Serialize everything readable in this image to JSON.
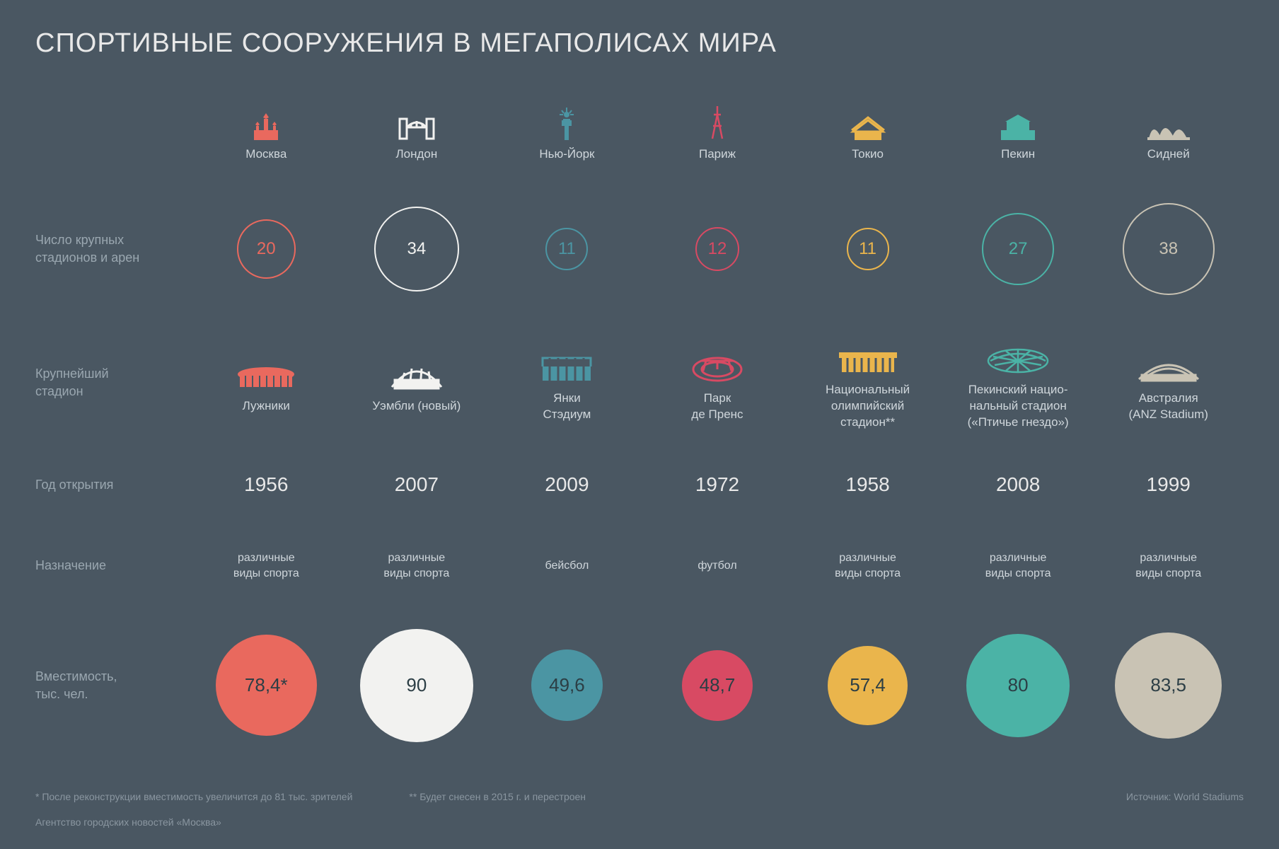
{
  "type": "infographic",
  "title": "СПОРТИВНЫЕ СООРУЖЕНИЯ В МЕГАПОЛИСАХ МИРА",
  "background_color": "#4a5762",
  "title_color": "#e8e8e8",
  "title_fontsize": 38,
  "label_color": "#9aa7b0",
  "text_color": "#cfd6db",
  "row_labels": {
    "count": "Число крупных\nстадионов и арен",
    "stadium": "Крупнейший\nстадион",
    "year": "Год открытия",
    "purpose": "Назначение",
    "capacity": "Вместимость,\nтыс. чел."
  },
  "count_ring": {
    "min_val": 11,
    "max_val": 38,
    "min_d": 60,
    "max_d": 130
  },
  "capacity_circle": {
    "min_val": 48.7,
    "max_val": 90,
    "min_d": 100,
    "max_d": 160,
    "text_color": "#2c3e45"
  },
  "cities": [
    {
      "name": "Москва",
      "color": "#e9695e",
      "count": 20,
      "stadium": "Лужники",
      "year": "1956",
      "purpose": "различные\nвиды спорта",
      "capacity_text": "78,4*",
      "capacity_val": 78.4,
      "icon": "moscow"
    },
    {
      "name": "Лондон",
      "color": "#f2f2f0",
      "count": 34,
      "stadium": "Уэмбли (новый)",
      "year": "2007",
      "purpose": "различные\nвиды спорта",
      "capacity_text": "90",
      "capacity_val": 90,
      "icon": "london"
    },
    {
      "name": "Нью-Йорк",
      "color": "#4b95a3",
      "count": 11,
      "stadium": "Янки\nСтэдиум",
      "year": "2009",
      "purpose": "бейсбол",
      "capacity_text": "49,6",
      "capacity_val": 49.6,
      "icon": "newyork"
    },
    {
      "name": "Париж",
      "color": "#d84a63",
      "count": 12,
      "stadium": "Парк\nде Пренс",
      "year": "1972",
      "purpose": "футбол",
      "capacity_text": "48,7",
      "capacity_val": 48.7,
      "icon": "paris"
    },
    {
      "name": "Токио",
      "color": "#eab54c",
      "count": 11,
      "stadium": "Национальный\nолимпийский\nстадион**",
      "year": "1958",
      "purpose": "различные\nвиды спорта",
      "capacity_text": "57,4",
      "capacity_val": 57.4,
      "icon": "tokyo"
    },
    {
      "name": "Пекин",
      "color": "#4bb3a6",
      "count": 27,
      "stadium": "Пекинский нацио-\nнальный стадион\n(«Птичье гнездо»)",
      "year": "2008",
      "purpose": "различные\nвиды спорта",
      "capacity_text": "80",
      "capacity_val": 80,
      "icon": "beijing"
    },
    {
      "name": "Сидней",
      "color": "#c9c3b4",
      "count": 38,
      "stadium": "Австралия\n(ANZ Stadium)",
      "year": "1999",
      "purpose": "различные\nвиды спорта",
      "capacity_text": "83,5",
      "capacity_val": 83.5,
      "icon": "sydney"
    }
  ],
  "footnotes": {
    "note1": "* После реконструкции вместимость увеличится до 81 тыс. зрителей",
    "note2": "** Будет снесен в 2015 г. и перестроен",
    "source": "Источник: World Stadiums",
    "agency": "Агентство городских новостей «Москва»"
  },
  "icons": {
    "moscow": "<svg width='46' height='44' viewBox='0 0 46 44'><g fill='#e9695e'><rect x='6' y='30' width='34' height='14'/><path d='M23 6 l4 6 -4 2 -4 -2 z'/><rect x='20' y='14' width='6' height='16'/><path d='M11 18 l3 4 -3 2 -3 -2 z'/><rect x='9' y='24' width='4' height='10'/><path d='M35 18 l3 4 -3 2 -3 -2 z'/><rect x='33' y='24' width='4' height='10'/></g></svg>",
    "london": "<svg width='60' height='44' viewBox='0 0 60 44'><g fill='none' stroke='#f2f2f0' stroke-width='3'><rect x='6' y='14' width='10' height='28'/><rect x='44' y='14' width='10' height='28'/><line x1='16' y1='26' x2='44' y2='26'/><path d='M16 26 Q30 12 44 26' /><line x1='22' y1='26' x2='22' y2='20'/><line x1='30' y1='26' x2='30' y2='17'/><line x1='38' y1='26' x2='38' y2='20'/></g></svg>",
    "newyork": "<svg width='34' height='50' viewBox='0 0 34 50'><g fill='#4b95a3'><rect x='14' y='30' width='6' height='20'/><path d='M12 20 h10 v10 h-10 z'/><circle cx='17' cy='14' r='4'/><line x1='17' y1='4' x2='17' y2='10' stroke='#4b95a3' stroke-width='2'/><line x1='10' y1='8' x2='13' y2='12' stroke='#4b95a3' stroke-width='2'/><line x1='24' y1='8' x2='21' y2='12' stroke='#4b95a3' stroke-width='2'/><line x1='7' y1='14' x2='12' y2='14' stroke='#4b95a3' stroke-width='2'/><line x1='22' y1='14' x2='27' y2='14' stroke='#4b95a3' stroke-width='2'/><rect x='10' y='22' width='2' height='8'/><rect x='22' y='22' width='2' height='8'/></g></svg>",
    "paris": "<svg width='34' height='50' viewBox='0 0 34 50'><g fill='none' stroke='#d84a63' stroke-width='2.5'><path d='M17 2 L17 14 M12 14 L22 14 M17 14 L10 48 M17 14 L24 48 M11 30 L23 30'/></g></svg>",
    "tokyo": "<svg width='54' height='40' viewBox='0 0 54 40'><g fill='#eab54c'><rect x='8' y='28' width='38' height='12'/><path d='M6 28 L27 12 L48 28 Z' fill='none' stroke='#eab54c' stroke-width='3'/><path d='M4 26 L27 8 L50 26' fill='none' stroke='#eab54c' stroke-width='3'/></g></svg>",
    "beijing": "<svg width='60' height='40' viewBox='0 0 60 40'><g fill='#4bb3a6'><rect x='6' y='26' width='48' height='14'/><rect x='14' y='14' width='32' height='12'/><path d='M12 14 L30 4 L48 14 Z'/></g></svg>",
    "sydney": "<svg width='64' height='38' viewBox='0 0 64 38'><g fill='#c9c3b4'><path d='M4 36 Q10 10 22 36 Z'/><path d='M18 36 Q26 6 40 36 Z'/><path d='M36 36 Q46 10 58 36 Z'/><rect x='2' y='34' width='60' height='4'/></g></svg>"
  },
  "stadium_icons": {
    "moscow": "<svg width='90' height='40' viewBox='0 0 90 40'><g fill='#e9695e'><ellipse cx='45' cy='18' rx='40' ry='10'/><rect x='8' y='18' width='74' height='18'/><g stroke='#4a5762' stroke-width='2'><line x1='16' y1='20' x2='16' y2='36'/><line x1='26' y1='20' x2='26' y2='36'/><line x1='36' y1='20' x2='36' y2='36'/><line x1='46' y1='20' x2='46' y2='36'/><line x1='56' y1='20' x2='56' y2='36'/><line x1='66' y1='20' x2='66' y2='36'/><line x1='76' y1='20' x2='76' y2='36'/></g></g></svg>",
    "london": "<svg width='90' height='44' viewBox='0 0 90 44'><g fill='none' stroke='#f2f2f0' stroke-width='3'><path d='M10 40 Q45 -4 80 40'/><rect x='14' y='30' width='62' height='12' fill='#f2f2f0'/><line x1='20' y1='40' x2='28' y2='20'/><line x1='35' y1='40' x2='38' y2='14'/><line x1='50' y1='40' x2='52' y2='14'/><line x1='65' y1='40' x2='62' y2='18'/></g></svg>",
    "newyork": "<svg width='84' height='42' viewBox='0 0 84 42'><g fill='#4b95a3'><rect x='8' y='20' width='68' height='20'/><path d='M8 20 L8 8 L76 8 L76 20' fill='none' stroke='#4b95a3' stroke-width='3'/><g stroke='#4a5762' stroke-width='3'><line x1='18' y1='8' x2='18' y2='40'/><line x1='30' y1='8' x2='30' y2='40'/><line x1='42' y1='8' x2='42' y2='40'/><line x1='54' y1='8' x2='54' y2='40'/><line x1='66' y1='8' x2='66' y2='40'/></g></g></svg>",
    "paris": "<svg width='80' height='44' viewBox='0 0 80 44'><g fill='none' stroke='#d84a63' stroke-width='3'><ellipse cx='40' cy='26' rx='34' ry='16'/><ellipse cx='40' cy='26' rx='22' ry='10'/><path d='M18 14 L62 14' /><line x1='24' y1='14' x2='20' y2='28'/><line x1='40' y1='14' x2='40' y2='26'/><line x1='56' y1='14' x2='60' y2='28'/></g></svg>",
    "tokyo": "<svg width='94' height='40' viewBox='0 0 94 40'><g fill='#eab54c'><rect x='6' y='10' width='82' height='8'/><rect x='10' y='18' width='74' height='20'/><g stroke='#4a5762' stroke-width='3'><line x1='18' y1='18' x2='18' y2='38'/><line x1='28' y1='18' x2='28' y2='38'/><line x1='38' y1='18' x2='38' y2='38'/><line x1='48' y1='18' x2='48' y2='38'/><line x1='58' y1='18' x2='58' y2='38'/><line x1='68' y1='18' x2='68' y2='38'/><line x1='78' y1='18' x2='78' y2='38'/></g></g></svg>",
    "beijing": "<svg width='94' height='42' viewBox='0 0 94 42'><g fill='none' stroke='#4bb3a6' stroke-width='2.5'><ellipse cx='47' cy='24' rx='42' ry='16'/><path d='M8 24 Q47 4 86 24'/><line x1='12' y1='18' x2='80' y2='30'/><line x1='14' y1='30' x2='82' y2='18'/><line x1='30' y1='10' x2='64' y2='38'/><line x1='64' y1='10' x2='30' y2='38'/><line x1='47' y1='8' x2='47' y2='40'/></g></svg>",
    "sydney": "<svg width='96' height='42' viewBox='0 0 96 42'><g fill='none' stroke='#c9c3b4' stroke-width='3'><path d='M6 38 Q48 -2 90 38'/><path d='M12 38 Q48 8 84 38'/><rect x='10' y='32' width='76' height='8' fill='#c9c3b4'/></g></svg>"
  }
}
